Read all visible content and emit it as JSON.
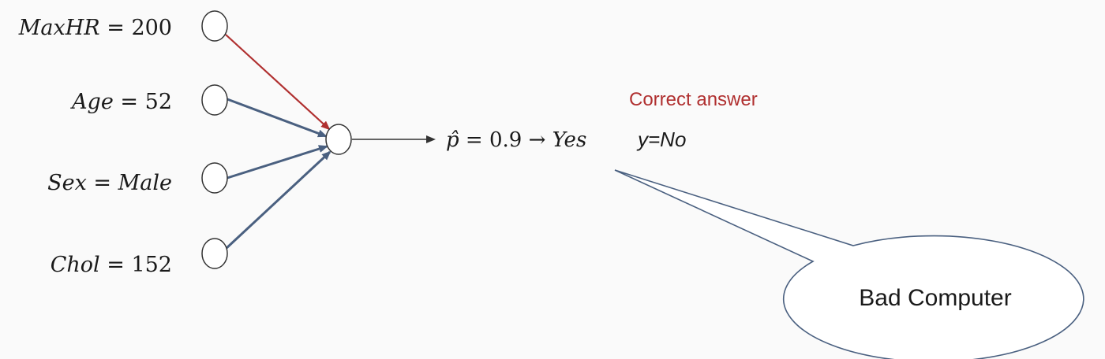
{
  "inputs": [
    {
      "label": "MaxHR = 200",
      "var": "MaxHR",
      "eq": "=",
      "val": "200",
      "edge_color": "#b03030"
    },
    {
      "label": "Age = 52",
      "var": "Age",
      "eq": "=",
      "val": "52",
      "edge_color": "#4a6080"
    },
    {
      "label": "Sex = Male",
      "var": "Sex",
      "eq": "=",
      "val": "Male",
      "edge_color": "#4a6080"
    },
    {
      "label": "Chol = 152",
      "var": "Chol",
      "eq": "=",
      "val": "152",
      "edge_color": "#4a6080"
    }
  ],
  "output": {
    "prediction_prefix": "p̂ = ",
    "prediction_value": "0.9",
    "prediction_arrow": " → ",
    "prediction_label": "Yes",
    "truth": "y=No",
    "correct_label": "Correct answer",
    "correct_color": "#b03030"
  },
  "callout": {
    "text": "Bad Computer",
    "stroke": "#4a6080"
  },
  "colors": {
    "node_stroke": "#333333",
    "text": "#1a1a1a",
    "output_edge": "#333333"
  }
}
